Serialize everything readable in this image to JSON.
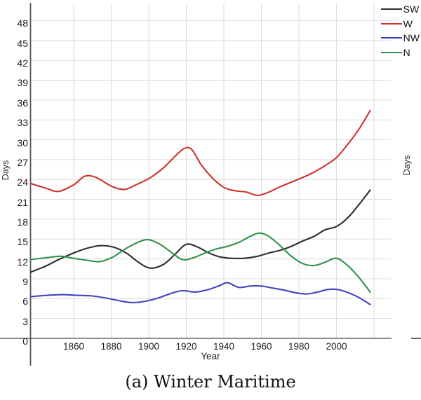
{
  "figure": {
    "caption": "(a) Winter Maritime",
    "xlabel": "Year",
    "ylabel": "Days",
    "adjacent_panel_ylabel": "Days"
  },
  "colors": {
    "background": "#ffffff",
    "grid": "#dcdcdc",
    "axis": "#666666",
    "tick_text": "#1c1c1c",
    "series_sw": "#2e2e2e",
    "series_w": "#cf322c",
    "series_nw": "#4343c0",
    "series_n": "#2f9248"
  },
  "chart_data": {
    "type": "line",
    "title": "",
    "xlabel": "Year",
    "ylabel": "Days",
    "xlim": [
      1837,
      2020
    ],
    "ylim": [
      0,
      49.5
    ],
    "grid": true,
    "legend_position": "top-right",
    "xticks": [
      1860,
      1880,
      1900,
      1920,
      1940,
      1960,
      1980,
      2000
    ],
    "grid_years": [
      1860,
      1880,
      1900,
      1920,
      1940,
      1960,
      1980,
      2000,
      2020
    ],
    "yticks": [
      0,
      3,
      6,
      9,
      12,
      15,
      18,
      21,
      24,
      27,
      30,
      33,
      36,
      39,
      42,
      45,
      48
    ],
    "series": [
      {
        "name": "SW",
        "color": "#2e2e2e",
        "points": [
          [
            1837,
            10.0
          ],
          [
            1845,
            10.9
          ],
          [
            1852,
            11.9
          ],
          [
            1860,
            12.9
          ],
          [
            1867,
            13.6
          ],
          [
            1874,
            14.0
          ],
          [
            1881,
            13.8
          ],
          [
            1888,
            12.9
          ],
          [
            1895,
            11.4
          ],
          [
            1901,
            10.6
          ],
          [
            1908,
            11.2
          ],
          [
            1914,
            12.7
          ],
          [
            1920,
            14.2
          ],
          [
            1926,
            13.8
          ],
          [
            1932,
            12.9
          ],
          [
            1938,
            12.3
          ],
          [
            1944,
            12.1
          ],
          [
            1951,
            12.1
          ],
          [
            1958,
            12.4
          ],
          [
            1964,
            12.9
          ],
          [
            1970,
            13.3
          ],
          [
            1976,
            13.9
          ],
          [
            1982,
            14.7
          ],
          [
            1988,
            15.4
          ],
          [
            1994,
            16.4
          ],
          [
            2000,
            16.9
          ],
          [
            2006,
            18.2
          ],
          [
            2012,
            20.2
          ],
          [
            2018,
            22.4
          ]
        ]
      },
      {
        "name": "W",
        "color": "#cf322c",
        "points": [
          [
            1837,
            23.4
          ],
          [
            1845,
            22.7
          ],
          [
            1852,
            22.2
          ],
          [
            1860,
            23.2
          ],
          [
            1866,
            24.5
          ],
          [
            1872,
            24.3
          ],
          [
            1880,
            23.0
          ],
          [
            1887,
            22.5
          ],
          [
            1894,
            23.3
          ],
          [
            1901,
            24.3
          ],
          [
            1908,
            25.8
          ],
          [
            1914,
            27.5
          ],
          [
            1919,
            28.7
          ],
          [
            1923,
            28.5
          ],
          [
            1928,
            26.2
          ],
          [
            1934,
            24.2
          ],
          [
            1940,
            22.8
          ],
          [
            1946,
            22.3
          ],
          [
            1952,
            22.1
          ],
          [
            1958,
            21.6
          ],
          [
            1964,
            22.1
          ],
          [
            1970,
            22.9
          ],
          [
            1976,
            23.6
          ],
          [
            1982,
            24.3
          ],
          [
            1988,
            25.1
          ],
          [
            1994,
            26.1
          ],
          [
            2000,
            27.3
          ],
          [
            2006,
            29.3
          ],
          [
            2012,
            31.6
          ],
          [
            2018,
            34.4
          ]
        ]
      },
      {
        "name": "NW",
        "color": "#4343c0",
        "points": [
          [
            1837,
            6.3
          ],
          [
            1846,
            6.5
          ],
          [
            1854,
            6.6
          ],
          [
            1862,
            6.5
          ],
          [
            1870,
            6.4
          ],
          [
            1877,
            6.1
          ],
          [
            1884,
            5.7
          ],
          [
            1891,
            5.4
          ],
          [
            1898,
            5.6
          ],
          [
            1905,
            6.1
          ],
          [
            1912,
            6.8
          ],
          [
            1918,
            7.2
          ],
          [
            1925,
            7.0
          ],
          [
            1932,
            7.4
          ],
          [
            1938,
            8.0
          ],
          [
            1942,
            8.4
          ],
          [
            1948,
            7.7
          ],
          [
            1954,
            7.9
          ],
          [
            1960,
            7.9
          ],
          [
            1966,
            7.6
          ],
          [
            1972,
            7.3
          ],
          [
            1978,
            6.9
          ],
          [
            1984,
            6.7
          ],
          [
            1990,
            7.0
          ],
          [
            1996,
            7.4
          ],
          [
            2002,
            7.3
          ],
          [
            2008,
            6.7
          ],
          [
            2013,
            6.0
          ],
          [
            2018,
            5.1
          ]
        ]
      },
      {
        "name": "N",
        "color": "#2f9248",
        "points": [
          [
            1837,
            11.9
          ],
          [
            1846,
            12.2
          ],
          [
            1853,
            12.4
          ],
          [
            1860,
            12.1
          ],
          [
            1867,
            11.8
          ],
          [
            1874,
            11.6
          ],
          [
            1881,
            12.3
          ],
          [
            1888,
            13.6
          ],
          [
            1895,
            14.6
          ],
          [
            1900,
            14.9
          ],
          [
            1906,
            14.2
          ],
          [
            1912,
            13.0
          ],
          [
            1918,
            11.9
          ],
          [
            1924,
            12.2
          ],
          [
            1930,
            12.9
          ],
          [
            1936,
            13.5
          ],
          [
            1942,
            13.9
          ],
          [
            1948,
            14.5
          ],
          [
            1954,
            15.4
          ],
          [
            1959,
            15.9
          ],
          [
            1964,
            15.4
          ],
          [
            1970,
            14.0
          ],
          [
            1976,
            12.4
          ],
          [
            1982,
            11.3
          ],
          [
            1988,
            11.0
          ],
          [
            1994,
            11.5
          ],
          [
            2000,
            12.1
          ],
          [
            2006,
            11.0
          ],
          [
            2012,
            9.2
          ],
          [
            2018,
            7.0
          ]
        ]
      }
    ]
  }
}
